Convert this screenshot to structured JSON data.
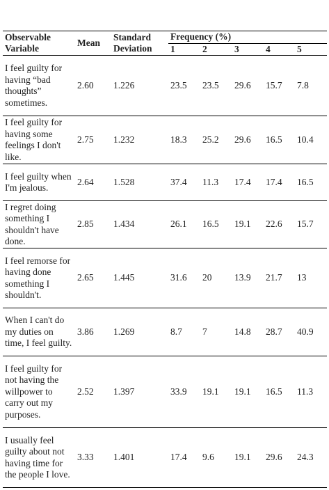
{
  "table": {
    "header": {
      "variable": "Observable Variable",
      "mean": "Mean",
      "sd": "Standard Deviation",
      "frequency": "Frequency (%)",
      "levels": [
        "1",
        "2",
        "3",
        "4",
        "5"
      ]
    },
    "rows": [
      [
        "I feel guilty for having “bad thoughts” sometimes.",
        "2.60",
        "1.226",
        "23.5",
        "23.5",
        "29.6",
        "15.7",
        "7.8"
      ],
      [
        "I feel guilty for having some feelings I don't like.",
        "2.75",
        "1.232",
        "18.3",
        "25.2",
        "29.6",
        "16.5",
        "10.4"
      ],
      [
        "I feel guilty when I'm jealous.",
        "2.64",
        "1.528",
        "37.4",
        "11.3",
        "17.4",
        "17.4",
        "16.5"
      ],
      [
        "I regret doing something I shouldn't have done.",
        "2.85",
        "1.434",
        "26.1",
        "16.5",
        "19.1",
        "22.6",
        "15.7"
      ],
      [
        "I feel remorse for having done something I shouldn't.",
        "2.65",
        "1.445",
        "31.6",
        "20",
        "13.9",
        "21.7",
        "13"
      ],
      [
        "When I can't do my duties on time, I feel guilty.",
        "3.86",
        "1.269",
        "8.7",
        "7",
        "14.8",
        "28.7",
        "40.9"
      ],
      [
        "I feel guilty for not having the willpower to carry out my purposes.",
        "2.52",
        "1.397",
        "33.9",
        "19.1",
        "19.1",
        "16.5",
        "11.3"
      ],
      [
        "I usually feel guilty about not having time for the people I love.",
        "3.33",
        "1.401",
        "17.4",
        "9.6",
        "19.1",
        "29.6",
        "24.3"
      ]
    ]
  }
}
